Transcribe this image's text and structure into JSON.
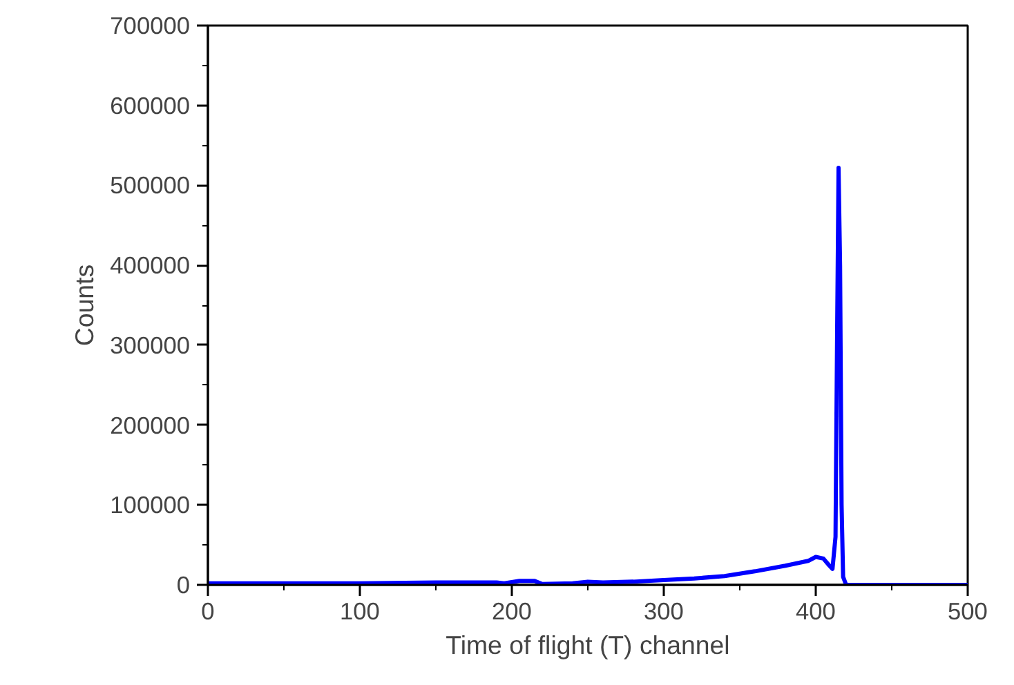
{
  "chart_data": {
    "type": "line",
    "xlabel": "Time of flight (T) channel",
    "ylabel": "Counts",
    "x": [
      0,
      50,
      100,
      150,
      190,
      195,
      205,
      215,
      220,
      240,
      250,
      260,
      280,
      300,
      320,
      340,
      360,
      380,
      395,
      400,
      405,
      409,
      411,
      413,
      414,
      415,
      416,
      417,
      418,
      420,
      500
    ],
    "series": [
      {
        "color": "#0000ff",
        "values": [
          2000,
          2000,
          2000,
          3000,
          3000,
          2000,
          5000,
          5000,
          1000,
          2000,
          4000,
          3000,
          4000,
          6000,
          8000,
          11000,
          17000,
          24000,
          30000,
          35000,
          33000,
          24000,
          20000,
          60000,
          300000,
          522000,
          400000,
          100000,
          10000,
          0,
          0
        ]
      }
    ],
    "xlim": [
      0,
      500
    ],
    "ylim": [
      0,
      700000
    ],
    "xticks": [
      0,
      100,
      200,
      300,
      400,
      500
    ],
    "yticks": [
      0,
      100000,
      200000,
      300000,
      400000,
      500000,
      600000,
      700000
    ],
    "grid": false,
    "line_style": "solid",
    "marker": "none"
  }
}
